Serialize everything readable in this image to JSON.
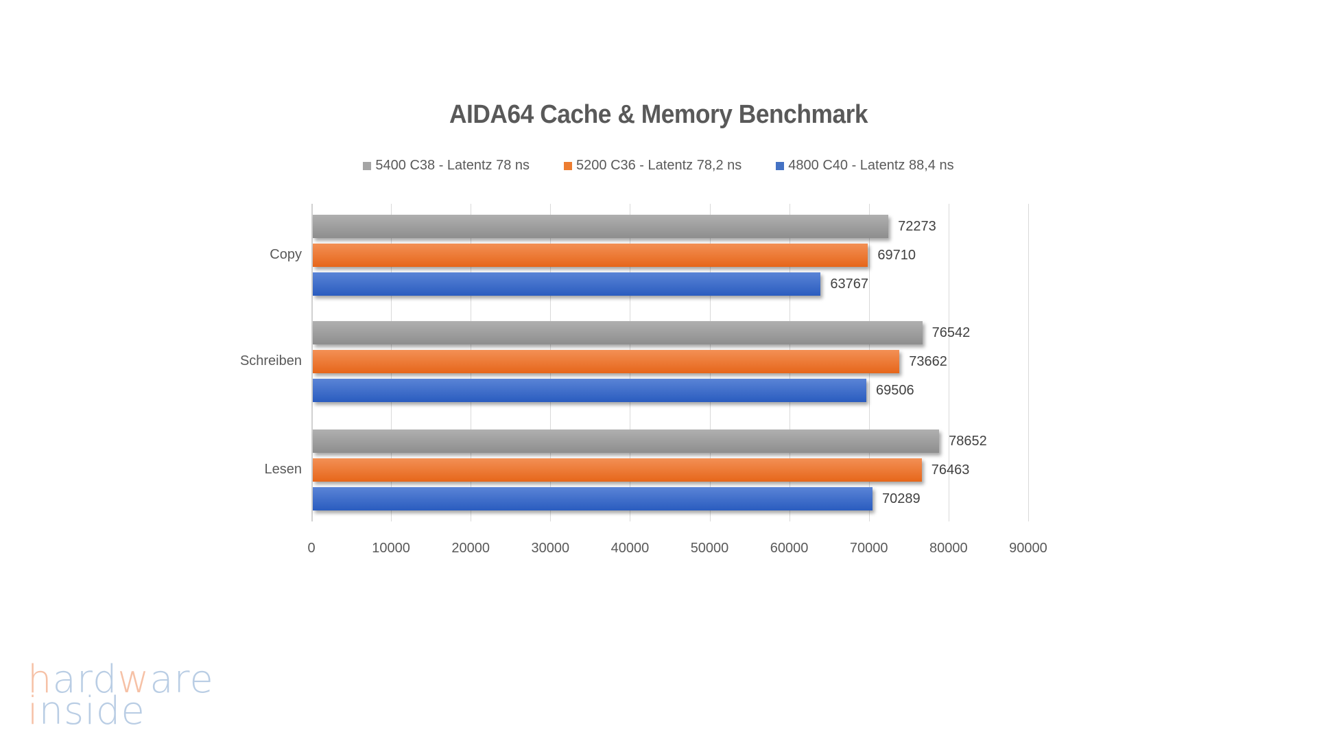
{
  "title": "AIDA64 Cache & Memory Benchmark",
  "legend": [
    {
      "label": "5400 C38 - Latentz 78 ns",
      "color": "#a5a5a5"
    },
    {
      "label": "5200 C36 - Latentz 78,2 ns",
      "color": "#ed7d31"
    },
    {
      "label": "4800 C40 - Latentz 88,4 ns",
      "color": "#4472c4"
    }
  ],
  "x_ticks": [
    "0",
    "10000",
    "20000",
    "30000",
    "40000",
    "50000",
    "60000",
    "70000",
    "80000",
    "90000"
  ],
  "categories": [
    "Copy",
    "Schreiben",
    "Lesen"
  ],
  "logo": {
    "line1": "hardware",
    "line2": "inside"
  },
  "chart_data": {
    "type": "bar",
    "orientation": "horizontal",
    "title": "AIDA64 Cache & Memory Benchmark",
    "categories": [
      "Copy",
      "Schreiben",
      "Lesen"
    ],
    "series": [
      {
        "name": "5400 C38 - Latentz 78 ns",
        "color": "#a5a5a5",
        "values": [
          72273,
          76542,
          78652
        ]
      },
      {
        "name": "5200 C36 - Latentz 78,2 ns",
        "color": "#ed7d31",
        "values": [
          69710,
          73662,
          76463
        ]
      },
      {
        "name": "4800 C40 - Latentz 88,4 ns",
        "color": "#4472c4",
        "values": [
          63767,
          69506,
          70289
        ]
      }
    ],
    "xlabel": "",
    "ylabel": "",
    "xlim": [
      0,
      90000
    ],
    "x_ticks": [
      0,
      10000,
      20000,
      30000,
      40000,
      50000,
      60000,
      70000,
      80000,
      90000
    ],
    "grid": true,
    "legend_position": "top",
    "data_labels": true
  }
}
